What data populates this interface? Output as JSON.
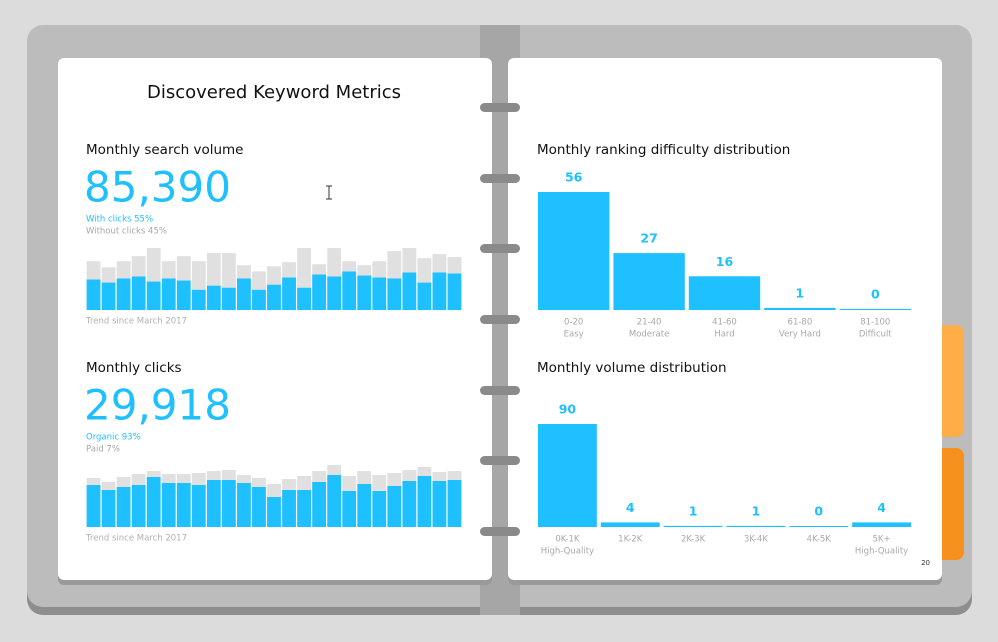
{
  "page": {
    "title": "Discovered Keyword Metrics",
    "page_number": "20"
  },
  "chart_data": [
    {
      "type": "bar",
      "stacked": true,
      "title": "Monthly search volume",
      "headline": "85,390",
      "footnote": "Trend since March 2017",
      "series": [
        {
          "name": "With clicks 55%",
          "color": "#1ec0ff",
          "values": [
            30,
            27,
            31,
            33,
            28,
            31,
            29,
            20,
            24,
            22,
            31,
            20,
            25,
            32,
            22,
            35,
            33,
            38,
            34,
            32,
            31,
            37,
            27,
            37,
            36
          ]
        },
        {
          "name": "Without clicks 45%",
          "color": "#e0e0e0",
          "values": [
            18,
            15,
            17,
            20,
            33,
            17,
            24,
            28,
            32,
            34,
            13,
            18,
            18,
            15,
            39,
            10,
            28,
            10,
            10,
            16,
            27,
            24,
            24,
            18,
            16
          ]
        }
      ]
    },
    {
      "type": "bar",
      "stacked": true,
      "title": "Monthly clicks",
      "headline": "29,918",
      "footnote": "Trend since March 2017",
      "series": [
        {
          "name": "Organic 93%",
          "color": "#1ec0ff",
          "values": [
            42,
            37,
            40,
            42,
            50,
            44,
            44,
            42,
            47,
            47,
            44,
            40,
            30,
            37,
            37,
            45,
            52,
            36,
            43,
            36,
            41,
            46,
            51,
            46,
            47
          ]
        },
        {
          "name": "Paid 7%",
          "color": "#e0e0e0",
          "values": [
            7,
            8,
            10,
            11,
            6,
            9,
            9,
            12,
            9,
            10,
            8,
            9,
            13,
            11,
            14,
            11,
            10,
            15,
            13,
            16,
            13,
            11,
            9,
            9,
            9
          ]
        }
      ]
    },
    {
      "type": "bar",
      "title": "Monthly ranking difficulty distribution",
      "color": "#1ec0ff",
      "categories": [
        "0-20",
        "21-40",
        "41-60",
        "61-80",
        "81-100"
      ],
      "sublabels": [
        "Easy",
        "Moderate",
        "Hard",
        "Very Hard",
        "Difficult"
      ],
      "values": [
        56,
        27,
        16,
        1,
        0
      ]
    },
    {
      "type": "bar",
      "title": "Monthly volume distribution",
      "color": "#1ec0ff",
      "categories": [
        "0K-1K",
        "1K-2K",
        "2K-3K",
        "3K-4K",
        "4K-5K",
        "5K+"
      ],
      "sublabels": [
        "High-Quality",
        null,
        null,
        null,
        null,
        "High-Quality"
      ],
      "values": [
        90,
        4,
        1,
        1,
        0,
        4
      ]
    }
  ]
}
